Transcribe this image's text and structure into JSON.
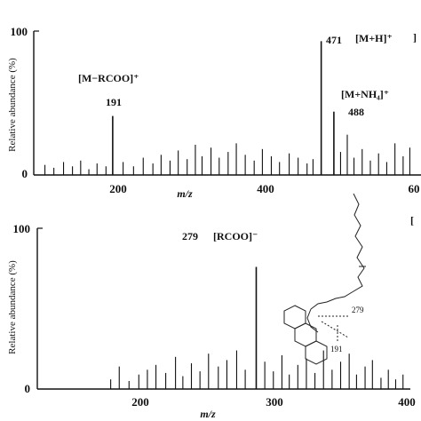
{
  "chart_data": [
    {
      "type": "bar",
      "panel": "top",
      "ylabel": "Relative abundance (%)",
      "xlabel": "m/z",
      "xlim": [
        85,
        605
      ],
      "ylim": [
        0,
        100
      ],
      "x_ticks": [
        "200",
        "400",
        "60"
      ],
      "y_ticks": [
        "100",
        "0"
      ],
      "annotations": [
        {
          "label": "[M−RCOO]⁺",
          "mz_label": "191",
          "x": 191,
          "y": 41
        },
        {
          "label": "[M+H]⁺",
          "mz_label": "471",
          "x": 471,
          "y": 93
        },
        {
          "label": "[M+NH₄]⁺",
          "mz_label": "488",
          "x": 488,
          "y": 44
        }
      ],
      "peaks": [
        {
          "x": 100,
          "y": 7
        },
        {
          "x": 112,
          "y": 5
        },
        {
          "x": 125,
          "y": 9
        },
        {
          "x": 137,
          "y": 6
        },
        {
          "x": 148,
          "y": 10
        },
        {
          "x": 159,
          "y": 4
        },
        {
          "x": 170,
          "y": 8
        },
        {
          "x": 182,
          "y": 6
        },
        {
          "x": 191,
          "y": 41
        },
        {
          "x": 205,
          "y": 9
        },
        {
          "x": 219,
          "y": 6
        },
        {
          "x": 232,
          "y": 12
        },
        {
          "x": 245,
          "y": 8
        },
        {
          "x": 256,
          "y": 14
        },
        {
          "x": 268,
          "y": 10
        },
        {
          "x": 279,
          "y": 17
        },
        {
          "x": 291,
          "y": 11
        },
        {
          "x": 302,
          "y": 21
        },
        {
          "x": 311,
          "y": 13
        },
        {
          "x": 323,
          "y": 19
        },
        {
          "x": 334,
          "y": 12
        },
        {
          "x": 346,
          "y": 16
        },
        {
          "x": 357,
          "y": 22
        },
        {
          "x": 369,
          "y": 14
        },
        {
          "x": 381,
          "y": 10
        },
        {
          "x": 392,
          "y": 18
        },
        {
          "x": 404,
          "y": 13
        },
        {
          "x": 415,
          "y": 9
        },
        {
          "x": 428,
          "y": 15
        },
        {
          "x": 440,
          "y": 12
        },
        {
          "x": 452,
          "y": 8
        },
        {
          "x": 460,
          "y": 11
        },
        {
          "x": 471,
          "y": 93
        },
        {
          "x": 488,
          "y": 44
        },
        {
          "x": 497,
          "y": 16
        },
        {
          "x": 506,
          "y": 28
        },
        {
          "x": 515,
          "y": 12
        },
        {
          "x": 526,
          "y": 18
        },
        {
          "x": 537,
          "y": 10
        },
        {
          "x": 548,
          "y": 15
        },
        {
          "x": 559,
          "y": 9
        },
        {
          "x": 570,
          "y": 22
        },
        {
          "x": 581,
          "y": 13
        },
        {
          "x": 590,
          "y": 19
        }
      ]
    },
    {
      "type": "bar",
      "panel": "bottom",
      "ylabel": "Relative abundance (%)",
      "xlabel": "m/z",
      "xlim": [
        100,
        405
      ],
      "ylim": [
        0,
        100
      ],
      "x_ticks": [
        "200",
        "300",
        "400"
      ],
      "y_ticks": [
        "100",
        "0"
      ],
      "annotations": [
        {
          "label": "[RCOO]⁻",
          "mz_label": "279",
          "x": 279,
          "y": 76
        }
      ],
      "peaks": [
        {
          "x": 160,
          "y": 6
        },
        {
          "x": 167,
          "y": 14
        },
        {
          "x": 175,
          "y": 5
        },
        {
          "x": 183,
          "y": 9
        },
        {
          "x": 190,
          "y": 12
        },
        {
          "x": 197,
          "y": 15
        },
        {
          "x": 205,
          "y": 10
        },
        {
          "x": 213,
          "y": 20
        },
        {
          "x": 219,
          "y": 8
        },
        {
          "x": 226,
          "y": 16
        },
        {
          "x": 233,
          "y": 11
        },
        {
          "x": 240,
          "y": 22
        },
        {
          "x": 248,
          "y": 14
        },
        {
          "x": 255,
          "y": 18
        },
        {
          "x": 263,
          "y": 24
        },
        {
          "x": 270,
          "y": 12
        },
        {
          "x": 279,
          "y": 76
        },
        {
          "x": 286,
          "y": 17
        },
        {
          "x": 293,
          "y": 11
        },
        {
          "x": 300,
          "y": 21
        },
        {
          "x": 306,
          "y": 9
        },
        {
          "x": 313,
          "y": 15
        },
        {
          "x": 320,
          "y": 19
        },
        {
          "x": 327,
          "y": 10
        },
        {
          "x": 334,
          "y": 24
        },
        {
          "x": 341,
          "y": 12
        },
        {
          "x": 348,
          "y": 17
        },
        {
          "x": 355,
          "y": 22
        },
        {
          "x": 361,
          "y": 9
        },
        {
          "x": 368,
          "y": 14
        },
        {
          "x": 374,
          "y": 18
        },
        {
          "x": 381,
          "y": 7
        },
        {
          "x": 387,
          "y": 12
        },
        {
          "x": 393,
          "y": 6
        },
        {
          "x": 399,
          "y": 9
        }
      ]
    }
  ],
  "structure": {
    "cleavage_labels": [
      "279",
      "191"
    ]
  }
}
